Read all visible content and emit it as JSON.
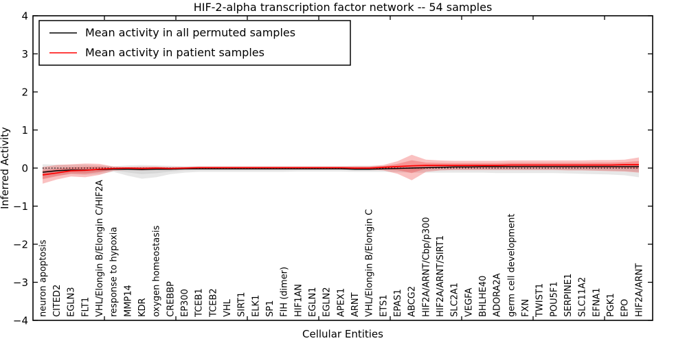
{
  "title": "HIF-2-alpha transcription factor network -- 54 samples",
  "legend": {
    "entries": [
      {
        "label": "Mean activity in all permuted samples",
        "color": "#000000"
      },
      {
        "label": "Mean activity in patient samples",
        "color": "#ff0000"
      }
    ]
  },
  "chart_data": {
    "type": "line",
    "title": "HIF-2-alpha transcription factor network -- 54 samples",
    "xlabel": "Cellular Entities",
    "ylabel": "Inferred Activity",
    "ylim": [
      -4,
      4
    ],
    "yticks": [
      4,
      3,
      2,
      1,
      0,
      -1,
      -2,
      -3,
      -4
    ],
    "grid": false,
    "legend_position": "upper left",
    "baseline": {
      "y": 0,
      "style": "dotted",
      "color": "#000000"
    },
    "categories": [
      "neuron apoptosis",
      "CITED2",
      "EGLN3",
      "FLT1",
      "VHL/Elongin B/Elongin C/HIF2A",
      "response to hypoxia",
      "MMP14",
      "KDR",
      "oxygen homeostasis",
      "CREBBP",
      "EP300",
      "TCEB1",
      "TCEB2",
      "VHL",
      "SIRT1",
      "ELK1",
      "SP1",
      "FIH (dimer)",
      "HIF1AN",
      "EGLN1",
      "EGLN2",
      "APEX1",
      "ARNT",
      "VHL/Elongin B/Elongin C",
      "ETS1",
      "EPAS1",
      "ABCG2",
      "HIF2A/ARNT/Cbp/p300",
      "HIF2A/ARNT/SIRT1",
      "SLC2A1",
      "VEGFA",
      "BHLHE40",
      "ADORA2A",
      "germ cell development",
      "FXN",
      "TWIST1",
      "POU5F1",
      "SERPINE1",
      "SLC11A2",
      "EFNA1",
      "PGK1",
      "EPO",
      "HIF2A/ARNT"
    ],
    "series": [
      {
        "name": "Mean activity in all permuted samples",
        "color": "#000000",
        "band_color": "#bbbbbb",
        "mean": [
          -0.11,
          -0.07,
          -0.05,
          -0.05,
          -0.04,
          -0.03,
          -0.03,
          -0.04,
          -0.03,
          -0.03,
          -0.02,
          -0.02,
          -0.02,
          -0.02,
          -0.02,
          -0.02,
          -0.02,
          -0.02,
          -0.02,
          -0.02,
          -0.02,
          -0.02,
          -0.03,
          -0.03,
          -0.02,
          -0.01,
          0.0,
          0.01,
          0.02,
          0.03,
          0.03,
          0.04,
          0.04,
          0.04,
          0.04,
          0.04,
          0.04,
          0.04,
          0.04,
          0.04,
          0.04,
          0.04,
          0.04
        ],
        "band_upper": [
          0.1,
          0.09,
          0.08,
          0.09,
          0.07,
          0.05,
          0.07,
          0.08,
          0.07,
          0.06,
          0.05,
          0.05,
          0.05,
          0.05,
          0.05,
          0.05,
          0.05,
          0.05,
          0.05,
          0.05,
          0.05,
          0.05,
          0.06,
          0.06,
          0.06,
          0.06,
          0.07,
          0.08,
          0.09,
          0.09,
          0.1,
          0.1,
          0.1,
          0.1,
          0.1,
          0.1,
          0.1,
          0.1,
          0.1,
          0.1,
          0.1,
          0.1,
          0.1
        ],
        "band_lower": [
          -0.27,
          -0.2,
          -0.16,
          -0.18,
          -0.15,
          -0.1,
          -0.2,
          -0.28,
          -0.24,
          -0.16,
          -0.12,
          -0.1,
          -0.1,
          -0.1,
          -0.1,
          -0.1,
          -0.1,
          -0.1,
          -0.09,
          -0.09,
          -0.09,
          -0.09,
          -0.1,
          -0.1,
          -0.1,
          -0.11,
          -0.12,
          -0.12,
          -0.12,
          -0.12,
          -0.12,
          -0.12,
          -0.13,
          -0.13,
          -0.13,
          -0.13,
          -0.13,
          -0.14,
          -0.15,
          -0.16,
          -0.17,
          -0.19,
          -0.24
        ]
      },
      {
        "name": "Mean activity in patient samples",
        "color": "#ff0000",
        "band_color": "#ee3333",
        "mean": [
          -0.18,
          -0.13,
          -0.07,
          -0.06,
          -0.03,
          -0.01,
          0.0,
          -0.01,
          0.0,
          -0.01,
          0.0,
          0.01,
          0.01,
          0.01,
          0.01,
          0.01,
          0.01,
          0.01,
          0.01,
          0.01,
          0.01,
          0.01,
          0.0,
          0.0,
          0.02,
          0.04,
          0.06,
          0.07,
          0.07,
          0.07,
          0.07,
          0.07,
          0.07,
          0.08,
          0.08,
          0.08,
          0.08,
          0.08,
          0.08,
          0.08,
          0.08,
          0.09,
          0.09
        ],
        "band_upper": [
          0.03,
          0.08,
          0.1,
          0.12,
          0.11,
          0.04,
          0.03,
          0.04,
          0.04,
          0.03,
          0.03,
          0.04,
          0.04,
          0.04,
          0.04,
          0.04,
          0.04,
          0.04,
          0.04,
          0.04,
          0.04,
          0.04,
          0.05,
          0.05,
          0.08,
          0.18,
          0.35,
          0.22,
          0.2,
          0.19,
          0.19,
          0.19,
          0.19,
          0.2,
          0.2,
          0.2,
          0.2,
          0.2,
          0.2,
          0.21,
          0.21,
          0.22,
          0.28
        ],
        "band_lower": [
          -0.41,
          -0.3,
          -0.22,
          -0.24,
          -0.18,
          -0.07,
          -0.05,
          -0.06,
          -0.05,
          -0.05,
          -0.04,
          -0.03,
          -0.03,
          -0.03,
          -0.03,
          -0.03,
          -0.03,
          -0.03,
          -0.03,
          -0.03,
          -0.03,
          -0.03,
          -0.04,
          -0.04,
          -0.06,
          -0.15,
          -0.32,
          -0.1,
          -0.06,
          -0.05,
          -0.05,
          -0.05,
          -0.05,
          -0.05,
          -0.05,
          -0.05,
          -0.05,
          -0.06,
          -0.06,
          -0.07,
          -0.08,
          -0.09,
          -0.12
        ]
      }
    ]
  }
}
